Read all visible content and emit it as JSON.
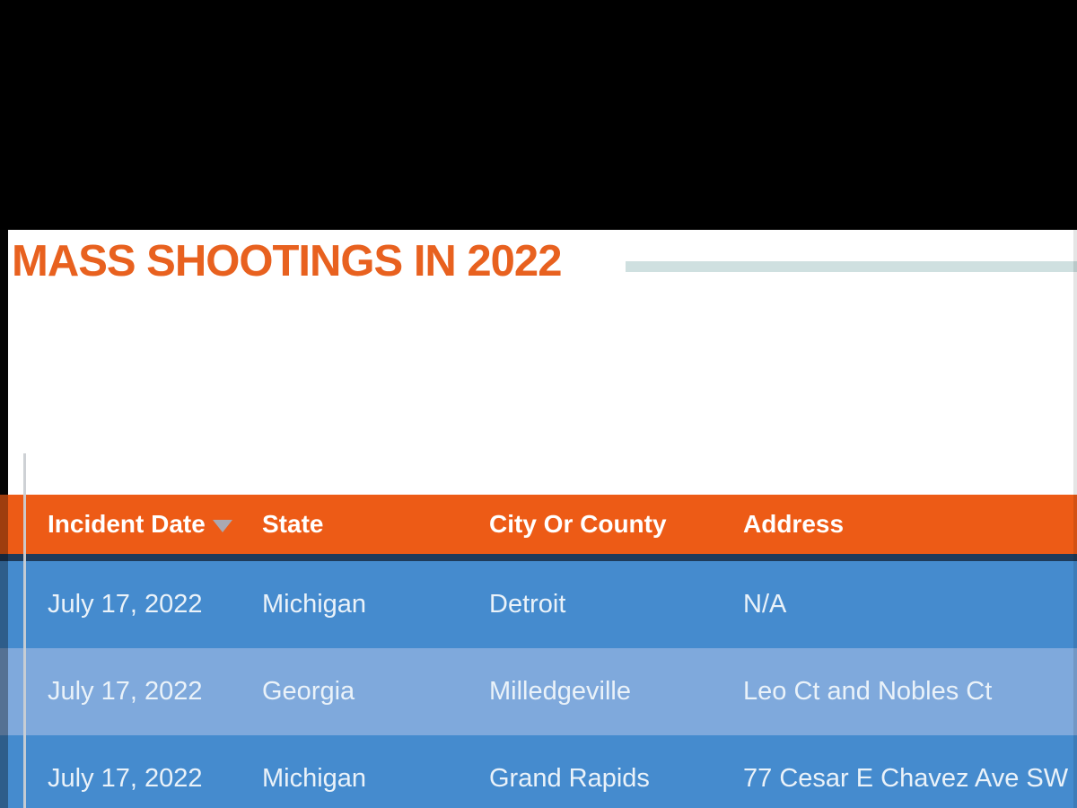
{
  "page": {
    "title": "MASS SHOOTINGS IN 2022"
  },
  "colors": {
    "title_orange": "#E8611F",
    "header_orange": "#ED5B16",
    "divider_navy": "#1E3B5B",
    "row_blue": "#458BCE",
    "row_blue_light": "#7FA9DC",
    "accent_teal": "#CFE0E0",
    "sort_arrow_gray": "#A9A9B2",
    "letterbox_black": "#000000"
  },
  "table": {
    "columns": [
      {
        "label": "Incident Date",
        "sorted": "desc"
      },
      {
        "label": "State"
      },
      {
        "label": "City Or County"
      },
      {
        "label": "Address"
      }
    ],
    "rows": [
      [
        "July 17, 2022",
        "Michigan",
        "Detroit",
        "N/A"
      ],
      [
        "July 17, 2022",
        "Georgia",
        "Milledgeville",
        "Leo Ct and Nobles Ct"
      ],
      [
        "July 17, 2022",
        "Michigan",
        "Grand Rapids",
        "77 Cesar E Chavez Ave SW"
      ]
    ]
  }
}
